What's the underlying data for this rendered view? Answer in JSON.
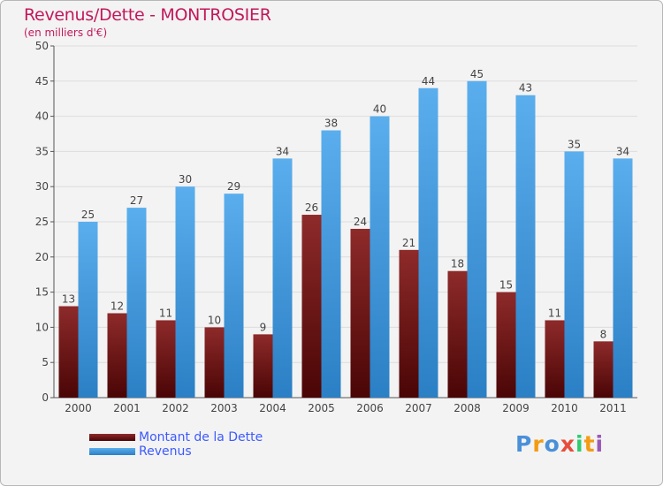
{
  "header": {
    "title": "Revenus/Dette - MONTROSIER",
    "subtitle": "(en milliers d'€)"
  },
  "legend": {
    "items": [
      {
        "label": "Montant de la Dette",
        "color": "#7a1616"
      },
      {
        "label": "Revenus",
        "color": "#3f9de6"
      }
    ]
  },
  "logo": {
    "text": "Proxiti",
    "letters": [
      {
        "ch": "P",
        "color": "#4a90d9"
      },
      {
        "ch": "r",
        "color": "#f39c12"
      },
      {
        "ch": "o",
        "color": "#4a90d9"
      },
      {
        "ch": "x",
        "color": "#e74c3c"
      },
      {
        "ch": "i",
        "color": "#2ecc71"
      },
      {
        "ch": "t",
        "color": "#f39c12"
      },
      {
        "ch": "i",
        "color": "#9b59b6"
      }
    ]
  },
  "chart_data": {
    "type": "bar",
    "title": "Revenus/Dette - MONTROSIER",
    "subtitle": "(en milliers d'€)",
    "categories": [
      "2000",
      "2001",
      "2002",
      "2003",
      "2004",
      "2005",
      "2006",
      "2007",
      "2008",
      "2009",
      "2010",
      "2011"
    ],
    "series": [
      {
        "name": "Montant de la Dette",
        "color": "#7a1616",
        "values": [
          13,
          12,
          11,
          10,
          9,
          26,
          24,
          21,
          18,
          15,
          11,
          8
        ]
      },
      {
        "name": "Revenus",
        "color": "#3f9de6",
        "values": [
          25,
          27,
          30,
          29,
          34,
          38,
          40,
          44,
          45,
          43,
          35,
          34
        ]
      }
    ],
    "ylim": [
      0,
      50
    ],
    "yticks": [
      0,
      5,
      10,
      15,
      20,
      25,
      30,
      35,
      40,
      45,
      50
    ],
    "grid": "horizontal",
    "legend_position": "bottom-left"
  }
}
